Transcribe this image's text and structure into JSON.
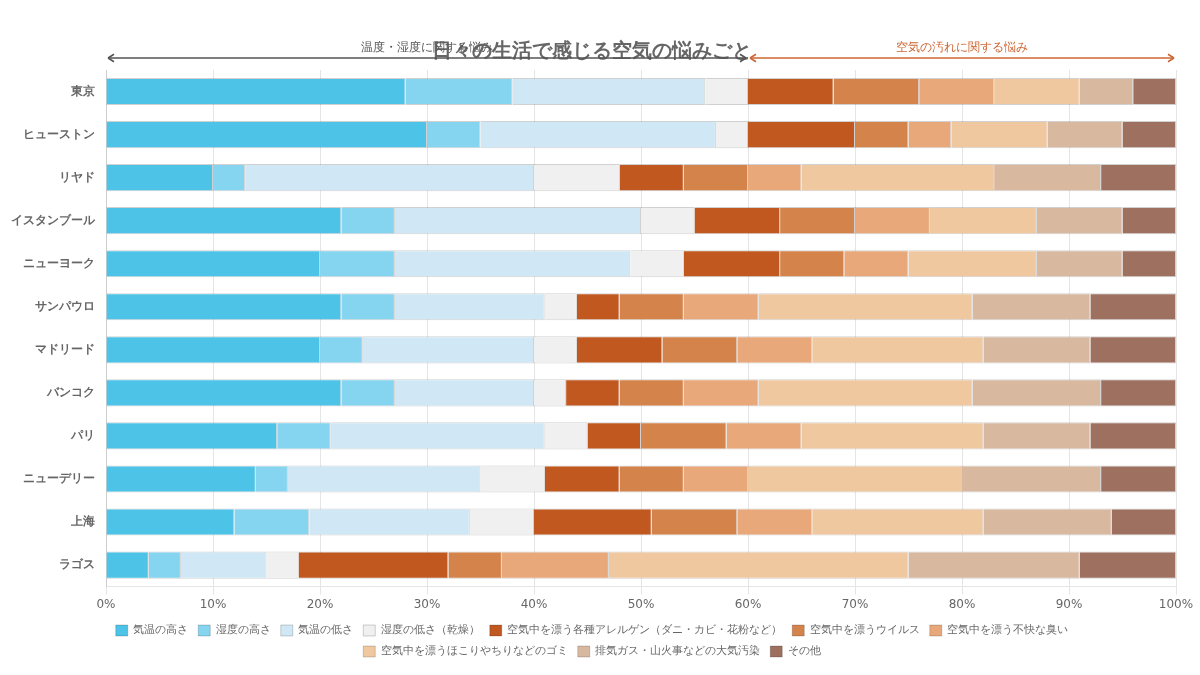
{
  "chart_data": {
    "type": "bar",
    "orientation": "horizontal",
    "stacked": true,
    "title": "日々の生活で感じる空気の悩みごと",
    "categories": [
      "東京",
      "ヒューストン",
      "リヤド",
      "イスタンブール",
      "ニューヨーク",
      "サンパウロ",
      "マドリード",
      "バンコク",
      "パリ",
      "ニューデリー",
      "上海",
      "ラゴス"
    ],
    "series": [
      {
        "name": "気温の高さ",
        "color": "#4dc3e8",
        "values": [
          28,
          30,
          10,
          22,
          20,
          22,
          20,
          22,
          16,
          14,
          12,
          4
        ]
      },
      {
        "name": "湿度の高さ",
        "color": "#85d4f0",
        "values": [
          10,
          5,
          3,
          5,
          7,
          5,
          4,
          5,
          5,
          3,
          7,
          3
        ]
      },
      {
        "name": "気温の低さ",
        "color": "#d0e8f5",
        "values": [
          18,
          22,
          27,
          23,
          22,
          14,
          16,
          13,
          20,
          18,
          15,
          8
        ]
      },
      {
        "name": "湿度の低さ（乾燥）",
        "color": "#f0f0f0",
        "values": [
          4,
          3,
          8,
          5,
          5,
          3,
          4,
          3,
          4,
          6,
          6,
          3
        ]
      },
      {
        "name": "空気中を漂う各種アレルゲン（ダニ・カビ・花粉など）",
        "color": "#c05820",
        "values": [
          8,
          10,
          6,
          8,
          9,
          4,
          8,
          5,
          5,
          7,
          11,
          14
        ]
      },
      {
        "name": "空気中を漂うウイルス",
        "color": "#d4834a",
        "values": [
          8,
          5,
          6,
          7,
          6,
          6,
          7,
          6,
          8,
          6,
          8,
          5
        ]
      },
      {
        "name": "空気中を漂う不快な臭い",
        "color": "#e8a87a",
        "values": [
          7,
          4,
          5,
          7,
          6,
          7,
          7,
          7,
          7,
          6,
          7,
          10
        ]
      },
      {
        "name": "空気中を漂うほこりやちりなどのゴミ",
        "color": "#f0c8a0",
        "values": [
          8,
          9,
          18,
          10,
          12,
          20,
          16,
          20,
          17,
          20,
          16,
          28
        ]
      },
      {
        "name": "排気ガス・山火事などの大気汚染",
        "color": "#d9b8a0",
        "values": [
          5,
          7,
          10,
          8,
          8,
          11,
          10,
          12,
          10,
          13,
          12,
          16
        ]
      },
      {
        "name": "その他",
        "color": "#9e7060",
        "values": [
          4,
          5,
          7,
          5,
          5,
          8,
          8,
          7,
          8,
          7,
          6,
          9
        ]
      }
    ],
    "xlim": [
      0,
      100
    ],
    "xticks": [
      {
        "value": 0,
        "label": "0%"
      },
      {
        "value": 10,
        "label": "10%"
      },
      {
        "value": 20,
        "label": "20%"
      },
      {
        "value": 30,
        "label": "30%"
      },
      {
        "value": 40,
        "label": "40%"
      },
      {
        "value": 50,
        "label": "50%"
      },
      {
        "value": 60,
        "label": "60%"
      },
      {
        "value": 70,
        "label": "70%"
      },
      {
        "value": 80,
        "label": "80%"
      },
      {
        "value": 90,
        "label": "90%"
      },
      {
        "value": 100,
        "label": "100%"
      }
    ],
    "grid": true,
    "legend": "bottom",
    "annotations": [
      {
        "text": "温度・湿度に関する悩み",
        "from": 0,
        "to": 60,
        "color": "#555555"
      },
      {
        "text": "空気の汚れに関する悩み",
        "from": 60,
        "to": 100,
        "color": "#cc6633"
      }
    ]
  }
}
